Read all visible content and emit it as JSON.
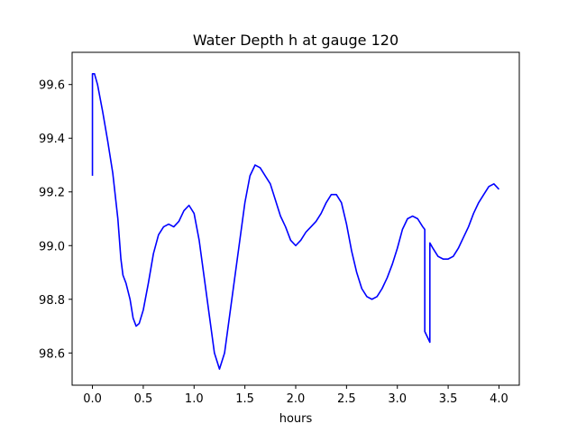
{
  "chart_data": {
    "type": "line",
    "title": "Water Depth h at gauge 120",
    "xlabel": "hours",
    "ylabel": "",
    "xlim": [
      -0.2,
      4.2
    ],
    "ylim": [
      98.48,
      99.72
    ],
    "x_ticks": [
      0.0,
      0.5,
      1.0,
      1.5,
      2.0,
      2.5,
      3.0,
      3.5,
      4.0
    ],
    "x_tick_labels": [
      "0.0",
      "0.5",
      "1.0",
      "1.5",
      "2.0",
      "2.5",
      "3.0",
      "3.5",
      "4.0"
    ],
    "y_ticks": [
      98.6,
      98.8,
      99.0,
      99.2,
      99.4,
      99.6
    ],
    "y_tick_labels": [
      "98.6",
      "98.8",
      "99.0",
      "99.2",
      "99.4",
      "99.6"
    ],
    "grid": false,
    "legend": "none",
    "series": [
      {
        "color": "#0000ff",
        "x": [
          0.0,
          0.0,
          0.02,
          0.05,
          0.1,
          0.15,
          0.2,
          0.25,
          0.28,
          0.3,
          0.33,
          0.37,
          0.4,
          0.43,
          0.46,
          0.5,
          0.55,
          0.6,
          0.65,
          0.7,
          0.75,
          0.8,
          0.85,
          0.9,
          0.95,
          1.0,
          1.05,
          1.1,
          1.15,
          1.2,
          1.25,
          1.3,
          1.35,
          1.4,
          1.45,
          1.5,
          1.55,
          1.6,
          1.65,
          1.7,
          1.75,
          1.8,
          1.85,
          1.9,
          1.95,
          2.0,
          2.05,
          2.1,
          2.15,
          2.2,
          2.25,
          2.3,
          2.35,
          2.4,
          2.45,
          2.5,
          2.55,
          2.6,
          2.65,
          2.7,
          2.75,
          2.8,
          2.85,
          2.9,
          2.95,
          3.0,
          3.05,
          3.1,
          3.15,
          3.2,
          3.25,
          3.27,
          3.27,
          3.32,
          3.32,
          3.35,
          3.4,
          3.45,
          3.5,
          3.55,
          3.6,
          3.65,
          3.7,
          3.75,
          3.8,
          3.85,
          3.9,
          3.95,
          4.0
        ],
        "y": [
          99.26,
          99.64,
          99.64,
          99.6,
          99.5,
          99.39,
          99.27,
          99.1,
          98.95,
          98.89,
          98.86,
          98.8,
          98.73,
          98.7,
          98.71,
          98.76,
          98.86,
          98.97,
          99.04,
          99.07,
          99.08,
          99.07,
          99.09,
          99.13,
          99.15,
          99.12,
          99.02,
          98.88,
          98.74,
          98.6,
          98.54,
          98.6,
          98.74,
          98.88,
          99.02,
          99.16,
          99.26,
          99.3,
          99.29,
          99.26,
          99.23,
          99.17,
          99.11,
          99.07,
          99.02,
          99.0,
          99.02,
          99.05,
          99.07,
          99.09,
          99.12,
          99.16,
          99.19,
          99.19,
          99.16,
          99.08,
          98.98,
          98.9,
          98.84,
          98.81,
          98.8,
          98.81,
          98.84,
          98.88,
          98.93,
          98.99,
          99.06,
          99.1,
          99.11,
          99.1,
          99.07,
          99.06,
          98.68,
          98.64,
          99.01,
          98.99,
          98.96,
          98.95,
          98.95,
          98.96,
          98.99,
          99.03,
          99.07,
          99.12,
          99.16,
          99.19,
          99.22,
          99.23,
          99.21
        ]
      }
    ]
  }
}
